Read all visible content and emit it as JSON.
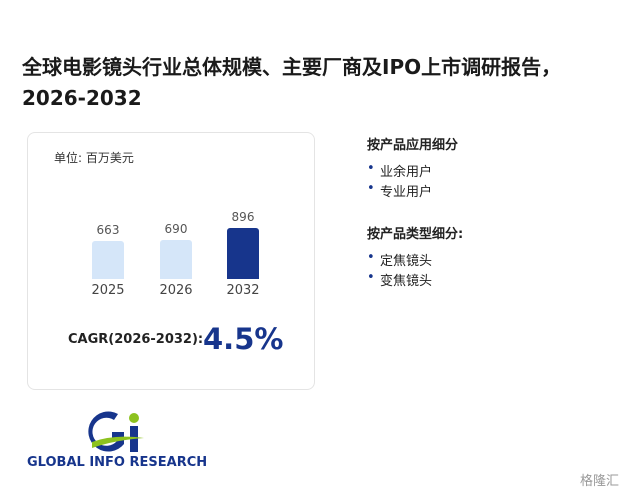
{
  "title": "全球电影镜头行业总体规模、主要厂商及IPO上市调研报告，2026-2032",
  "chart_data": {
    "type": "bar",
    "unit_label": "单位: 百万美元",
    "categories": [
      "2025",
      "2026",
      "2032"
    ],
    "values": [
      663,
      690,
      896
    ],
    "colors": [
      "#d5e6f9",
      "#d5e6f9",
      "#17358c"
    ],
    "cagr_label": "CAGR(2026-2032):",
    "cagr_value": "4.5%"
  },
  "segments": [
    {
      "heading": "按产品应用细分",
      "items": [
        "业余用户",
        "专业用户"
      ]
    },
    {
      "heading": "按产品类型细分:",
      "items": [
        "定焦镜头",
        "变焦镜头"
      ]
    }
  ],
  "logo": {
    "text": "GLOBAL INFO RESEARCH"
  },
  "watermark": "格隆汇"
}
